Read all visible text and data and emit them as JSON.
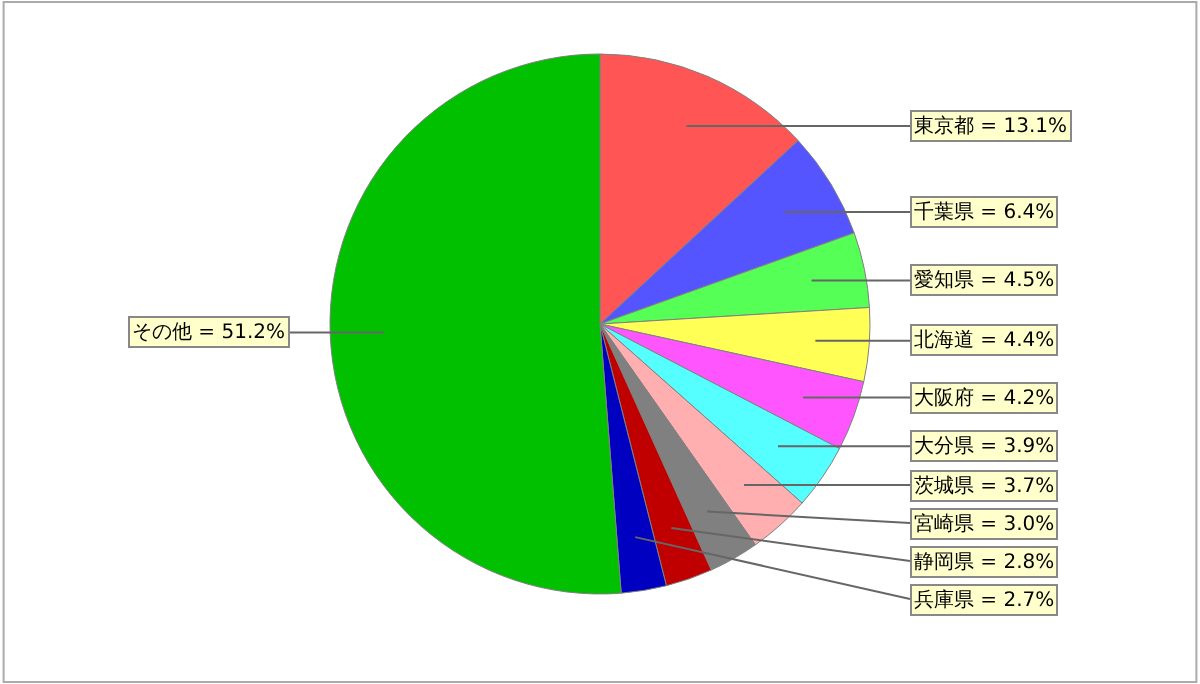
{
  "chart_data": {
    "type": "pie",
    "categories": [
      "東京都 = 13.1%",
      "千葉県 = 6.4%",
      "愛知県 = 4.5%",
      "北海道 = 4.4%",
      "大阪府 = 4.2%",
      "大分県 = 3.9%",
      "茨城県 = 3.7%",
      "宮崎県 = 3.0%",
      "静岡県 = 2.8%",
      "兵庫県 = 2.7%",
      "その他 = 51.2%"
    ],
    "values": [
      13.1,
      6.4,
      4.5,
      4.4,
      4.2,
      3.9,
      3.7,
      3.0,
      2.8,
      2.7,
      51.2
    ],
    "colors": [
      "#ff5555",
      "#5555ff",
      "#55ff55",
      "#ffff55",
      "#ff55ff",
      "#55ffff",
      "#ffafaf",
      "#808080",
      "#c00000",
      "#0000c0",
      "#00c000"
    ],
    "legend": false
  }
}
